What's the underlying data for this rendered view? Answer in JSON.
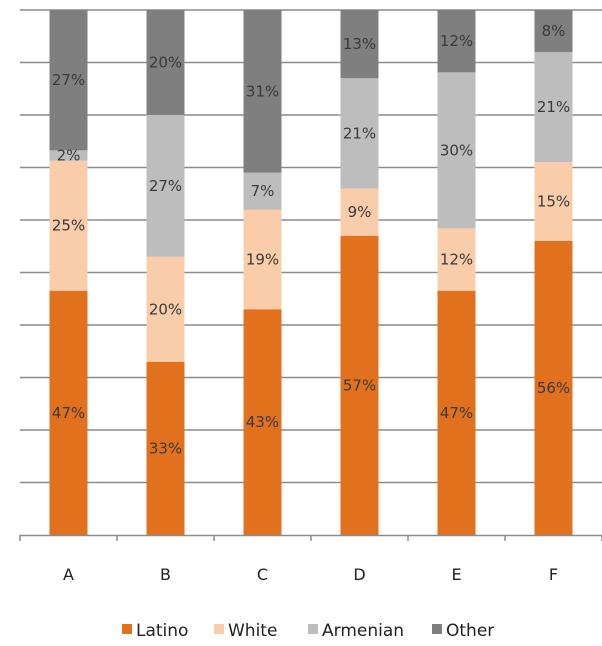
{
  "chart_data": {
    "type": "bar",
    "stacked": true,
    "normalized_percent": true,
    "categories": [
      "A",
      "B",
      "C",
      "D",
      "E",
      "F"
    ],
    "series": [
      {
        "name": "Latino",
        "color": "#e2711d",
        "values": [
          47,
          33,
          43,
          57,
          47,
          56
        ],
        "labels": [
          "47%",
          "33%",
          "43%",
          "57%",
          "47%",
          "56%"
        ]
      },
      {
        "name": "White",
        "color": "#f9ccaa",
        "values": [
          25,
          20,
          19,
          9,
          12,
          15
        ],
        "labels": [
          "25%",
          "20%",
          "19%",
          "9%",
          "12%",
          "15%"
        ]
      },
      {
        "name": "Armenian",
        "color": "#bdbdbd",
        "values": [
          2,
          27,
          7,
          21,
          30,
          21
        ],
        "labels": [
          "2%",
          "27%",
          "7%",
          "21%",
          "30%",
          "21%"
        ]
      },
      {
        "name": "Other",
        "color": "#7f7f7f",
        "values": [
          27,
          20,
          31,
          13,
          12,
          8
        ],
        "labels": [
          "27%",
          "20%",
          "31%",
          "13%",
          "12%",
          "8%"
        ]
      }
    ],
    "ylim": [
      0,
      100
    ],
    "grid": true,
    "legend": "bottom"
  }
}
